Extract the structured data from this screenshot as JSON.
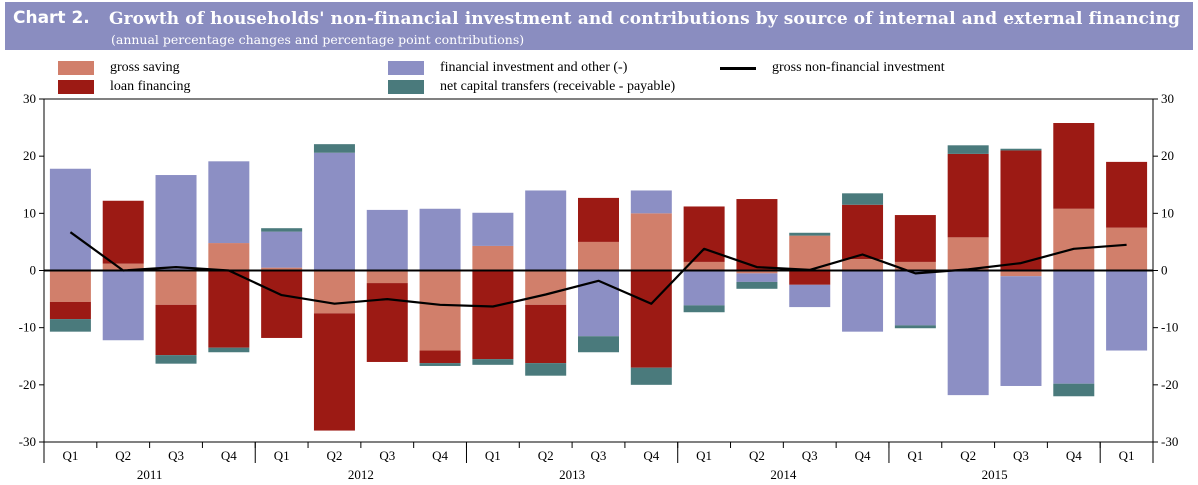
{
  "header": {
    "chart_number": "Chart 2.",
    "title": "Growth of households' non-financial investment and contributions by source of internal and external financing",
    "subtitle": "(annual percentage changes and percentage point contributions)"
  },
  "colors": {
    "gross_saving": "#d17f6b",
    "loan_financing": "#9c1a14",
    "financial_investment": "#8c8fc4",
    "capital_transfers": "#4a7a7c",
    "line": "#000000",
    "title_bar": "#8a8dc0"
  },
  "chart_data": {
    "type": "bar",
    "stacked": true,
    "ylim": [
      -30,
      30
    ],
    "yticks": [
      -30,
      -20,
      -10,
      0,
      10,
      20,
      30
    ],
    "quarters": [
      "Q1",
      "Q2",
      "Q3",
      "Q4",
      "Q1",
      "Q2",
      "Q3",
      "Q4",
      "Q1",
      "Q2",
      "Q3",
      "Q4",
      "Q1",
      "Q2",
      "Q3",
      "Q4",
      "Q1",
      "Q2",
      "Q3",
      "Q4",
      "Q1"
    ],
    "years": [
      {
        "label": "2011",
        "span": 4
      },
      {
        "label": "2012",
        "span": 4
      },
      {
        "label": "2013",
        "span": 4
      },
      {
        "label": "2014",
        "span": 4
      },
      {
        "label": "2015",
        "span": 4
      },
      {
        "label": "",
        "span": 1
      }
    ],
    "series": [
      {
        "key": "gross_saving",
        "name": "gross saving",
        "values": [
          -5.5,
          1.2,
          -6,
          4.8,
          0.5,
          -7.5,
          -2.2,
          -14,
          4.3,
          -6,
          5,
          10,
          1.5,
          -0.5,
          6.1,
          2,
          1.5,
          5.8,
          -1,
          10.8,
          7.5
        ]
      },
      {
        "key": "loan_financing",
        "name": "loan financing",
        "values": [
          -3,
          11,
          -8.8,
          -13.5,
          -11.8,
          -20.5,
          -13.8,
          -2.2,
          -15.5,
          -10.2,
          7.7,
          -17,
          9.7,
          12.5,
          -2.5,
          9.5,
          8.2,
          14.6,
          21,
          15,
          11.5
        ]
      },
      {
        "key": "financial_investment",
        "name": "financial investment and other (-)",
        "values": [
          17.8,
          -12.2,
          16.7,
          14.3,
          6.3,
          20.6,
          10.6,
          10.8,
          5.8,
          14,
          -11.5,
          4,
          -6.1,
          -1.5,
          -3.9,
          -10.7,
          -9.6,
          -21.8,
          -19.2,
          -19.8,
          -14
        ]
      },
      {
        "key": "capital_transfers",
        "name": "net capital transfers (receivable - payable)",
        "values": [
          -2.2,
          0,
          -1.5,
          -0.8,
          0.6,
          1.5,
          0,
          -0.5,
          -1.0,
          -2.2,
          -2.8,
          -3.0,
          -1.2,
          -1.2,
          0.5,
          2.0,
          -0.5,
          1.5,
          0.3,
          -2.2,
          0
        ]
      },
      {
        "key": "gross_nonfinancial_investment",
        "name": "gross non-financial investment",
        "kind": "line",
        "values": [
          6.7,
          0,
          0.6,
          0,
          -4.3,
          -5.8,
          -5,
          -6,
          -6.3,
          -4.2,
          -1.8,
          -5.8,
          3.8,
          0.6,
          0.1,
          2.8,
          -0.5,
          0.2,
          1.3,
          3.8,
          4.5
        ]
      }
    ]
  }
}
